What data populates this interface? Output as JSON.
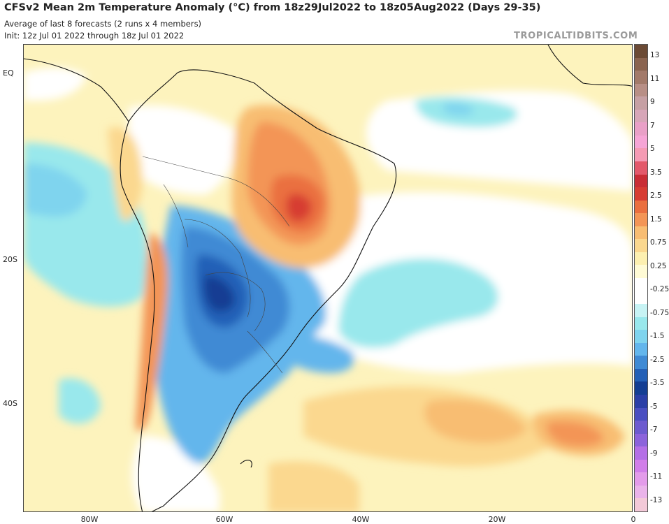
{
  "header": {
    "title": "CFSv2 Mean 2m Temperature Anomaly (°C) from 18z29Jul2022 to 18z05Aug2022 (Days 29-35)",
    "subtitle": "Average of last 8 forecasts (2 runs x 4 members)",
    "init": "Init: 12z Jul 01 2022 through 18z Jul 01 2022",
    "brand": "TROPICALTIDBITS.COM"
  },
  "axes": {
    "y_labels": [
      "EQ",
      "20S",
      "40S"
    ],
    "x_labels": [
      "80W",
      "60W",
      "40W",
      "20W",
      "0"
    ]
  },
  "colorbar": {
    "labels": [
      "13",
      "11",
      "9",
      "7",
      "5",
      "3.5",
      "2.5",
      "1.5",
      "0.75",
      "0.25",
      "-0.25",
      "-0.75",
      "-1.5",
      "-2.5",
      "-3.5",
      "-5",
      "-7",
      "-9",
      "-11",
      "-13"
    ],
    "colors": [
      "#6b4a35",
      "#8a6450",
      "#a37a6a",
      "#b88f86",
      "#c6a0a4",
      "#d7a6b8",
      "#e9a0c7",
      "#f6a5d6",
      "#f59bb4",
      "#e3596a",
      "#c92d35",
      "#d73c33",
      "#ea6f3f",
      "#f39556",
      "#f8bd72",
      "#fbd88f",
      "#fdf0b0",
      "#fffbd5",
      "#ffffff",
      "#ffffff",
      "#c7f3f4",
      "#99e8ec",
      "#7fd4ee",
      "#63b6ec",
      "#3f8ad4",
      "#2460b7",
      "#143e93",
      "#2b3fa7",
      "#4a4fc1",
      "#6d5bcf",
      "#8c63db",
      "#b46fe6",
      "#d17ee9",
      "#e39bea",
      "#eab3ea",
      "#f3c9d8"
    ]
  },
  "legend_colors": {
    "warm_strong": "#c92d35",
    "warm": "#f39556",
    "warm_light": "#fdf0b0",
    "neutral": "#ffffff",
    "cool_light": "#99e8ec",
    "cool": "#63b6ec",
    "cool_strong": "#143e93"
  }
}
